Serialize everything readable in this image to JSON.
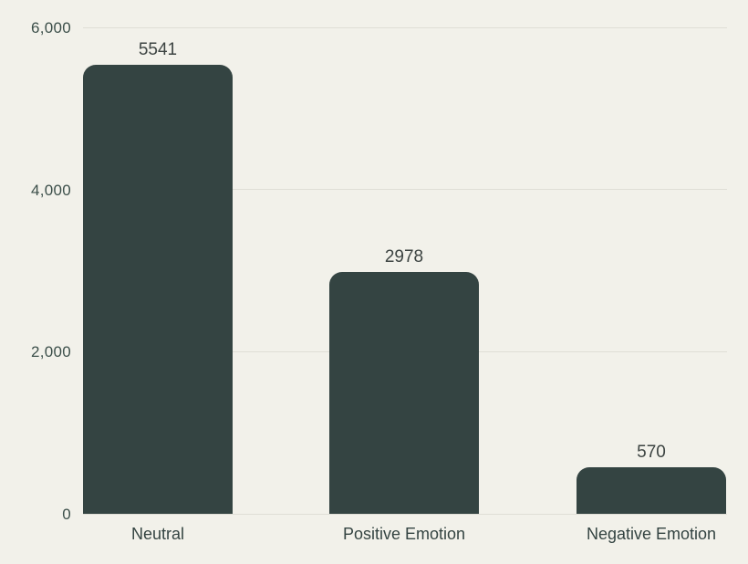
{
  "chart_data": {
    "type": "bar",
    "title": "",
    "xlabel": "",
    "ylabel": "",
    "categories": [
      "Neutral",
      "Positive Emotion",
      "Negative Emotion"
    ],
    "values": [
      5541,
      2978,
      570
    ],
    "value_labels": [
      "5541",
      "2978",
      "570"
    ],
    "y_ticks": [
      0,
      2000,
      4000,
      6000
    ],
    "y_tick_labels": [
      "0",
      "2,000",
      "4,000",
      "6,000"
    ],
    "ylim": [
      0,
      6000
    ],
    "grid": true,
    "legend": false,
    "bar_order_note": "bars sorted descending left to right"
  },
  "colors": {
    "background": "#f2f1ea",
    "bar": "#344442",
    "gridline": "#dfded6",
    "tick_text": "#3c4f4a",
    "value_text": "#3d4442",
    "category_text": "#344442"
  }
}
